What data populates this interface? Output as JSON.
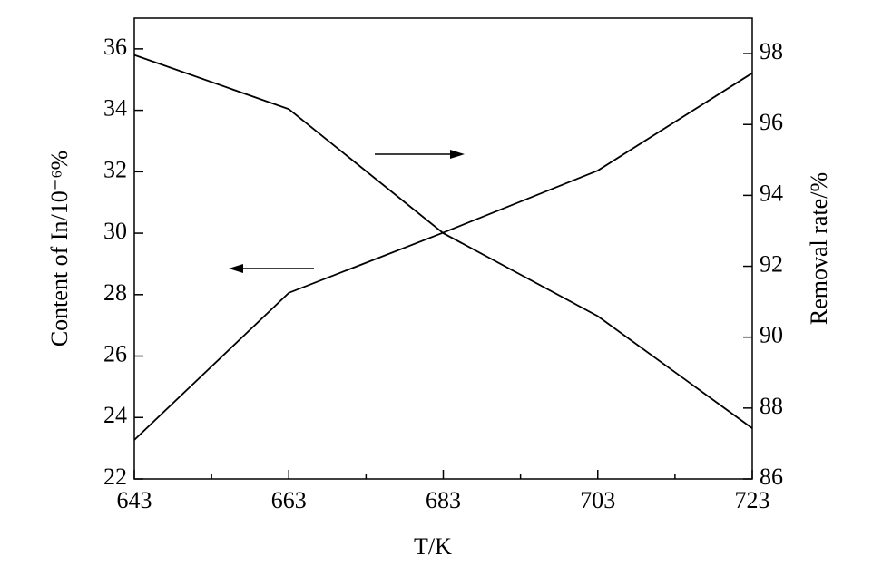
{
  "chart_data": {
    "type": "line",
    "x": [
      643,
      663,
      683,
      703,
      723
    ],
    "x_label": "T/K",
    "y_label": "Content of In/10⁻⁶%",
    "y2_label": "Removal rate/%",
    "series": [
      {
        "name": "Content of In",
        "color": "#000000",
        "values": [
          35.8,
          34.04,
          30.0,
          27.3,
          23.65
        ]
      },
      {
        "name": "Removal rate",
        "color": "#000000",
        "axis": "y2",
        "values": [
          87.1,
          91.25,
          92.95,
          94.7,
          97.45
        ]
      }
    ],
    "xlim": [
      643,
      723
    ],
    "xticks": [
      643,
      663,
      683,
      703,
      723
    ],
    "minor_xticks": [
      653,
      673,
      693,
      713
    ],
    "ylim": [
      22,
      37
    ],
    "yticks": [
      22,
      24,
      26,
      28,
      30,
      32,
      34,
      36
    ],
    "y2lim": [
      86,
      99
    ],
    "y2ticks": [
      86,
      88,
      90,
      92,
      94,
      96,
      98
    ],
    "grid": false
  }
}
